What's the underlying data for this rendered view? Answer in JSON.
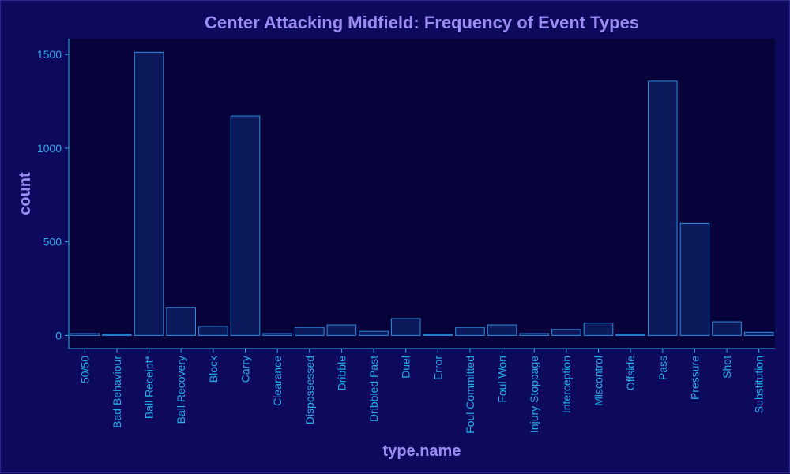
{
  "colors": {
    "background": "#0d0a5e",
    "panel": "#07023a",
    "bar_fill": "#0c1a5c",
    "bar_stroke": "#2a8fe0",
    "axis": "#29abe8",
    "title": "#9a8cf2"
  },
  "chart_data": {
    "type": "bar",
    "title": "Center Attacking Midfield: Frequency of Event Types",
    "xlabel": "type.name",
    "ylabel": "count",
    "ylim": [
      -70,
      1585
    ],
    "yticks": [
      0,
      500,
      1000,
      1500
    ],
    "grid": false,
    "categories": [
      "50/50",
      "Bad Behaviour",
      "Ball Receipt*",
      "Ball Recovery",
      "Block",
      "Carry",
      "Clearance",
      "Dispossessed",
      "Dribble",
      "Dribbled Past",
      "Duel",
      "Error",
      "Foul Committed",
      "Foul Won",
      "Injury Stoppage",
      "Interception",
      "Miscontrol",
      "Offside",
      "Pass",
      "Pressure",
      "Shot",
      "Substitution"
    ],
    "values": [
      10,
      5,
      1512,
      150,
      48,
      1172,
      10,
      43,
      56,
      22,
      90,
      5,
      43,
      56,
      10,
      32,
      66,
      5,
      1358,
      598,
      73,
      17
    ]
  }
}
